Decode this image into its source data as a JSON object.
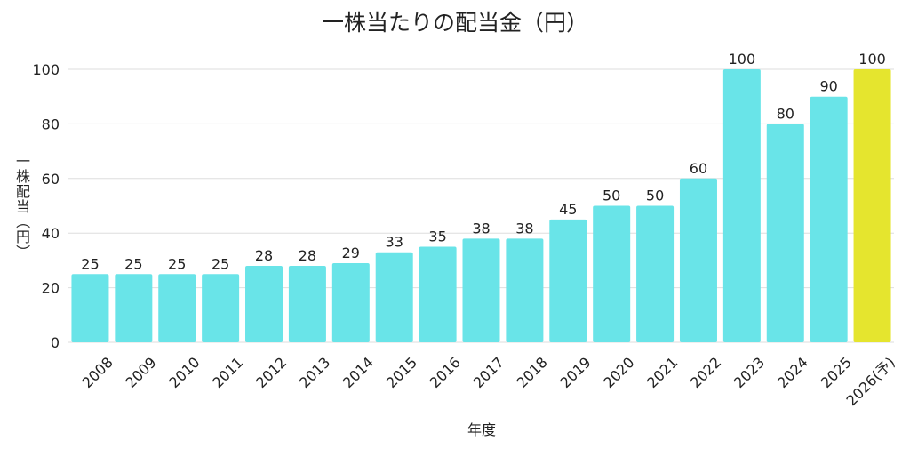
{
  "chart_data": {
    "type": "bar",
    "title": "一株当たりの配当金（円）",
    "xlabel": "年度",
    "ylabel": "一株配当（円）",
    "categories": [
      "2008",
      "2009",
      "2010",
      "2011",
      "2012",
      "2013",
      "2014",
      "2015",
      "2016",
      "2017",
      "2018",
      "2019",
      "2020",
      "2021",
      "2022",
      "2023",
      "2024",
      "2025",
      "2026(予)"
    ],
    "values": [
      25,
      25,
      25,
      25,
      28,
      28,
      29,
      33,
      35,
      38,
      38,
      45,
      50,
      50,
      60,
      100,
      80,
      90,
      100
    ],
    "ylim": [
      0,
      100
    ],
    "yticks": [
      0,
      20,
      40,
      60,
      80,
      100
    ],
    "grid": true,
    "legend": "none",
    "colors": {
      "bar": "#69e4e8",
      "forecast_bar": "#e5e52e",
      "grid": "#dedede"
    },
    "forecast_categories": [
      "2026(予)"
    ]
  }
}
